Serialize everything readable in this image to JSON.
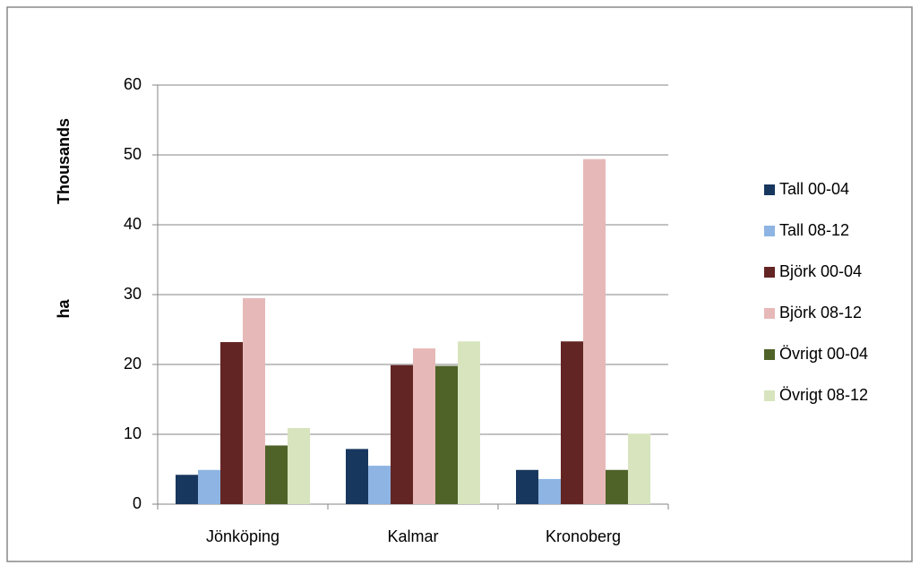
{
  "chart_data": {
    "type": "bar",
    "display_units_label": "Thousands",
    "y_axis_label": "ha",
    "categories": [
      "Jönköping",
      "Kalmar",
      "Kronoberg"
    ],
    "series": [
      {
        "name": "Tall 00-04",
        "color": "#17375e",
        "values": [
          4.2,
          7.9,
          4.9
        ]
      },
      {
        "name": "Tall 08-12",
        "color": "#8db4e2",
        "values": [
          4.9,
          5.5,
          3.6
        ]
      },
      {
        "name": "Björk 00-04",
        "color": "#632523",
        "values": [
          23.2,
          19.9,
          23.3
        ]
      },
      {
        "name": "Björk 08-12",
        "color": "#e6b9b8",
        "values": [
          29.5,
          22.3,
          49.4
        ]
      },
      {
        "name": "Övrigt  00-04",
        "color": "#4f6228",
        "values": [
          8.4,
          19.8,
          4.9
        ]
      },
      {
        "name": "Övrigt 08-12",
        "color": "#d7e4bd",
        "values": [
          10.9,
          23.3,
          10.1
        ]
      }
    ],
    "ylim": [
      0,
      60
    ],
    "yticks": [
      0,
      10,
      20,
      30,
      40,
      50,
      60
    ],
    "grid": true,
    "legend": "right"
  }
}
